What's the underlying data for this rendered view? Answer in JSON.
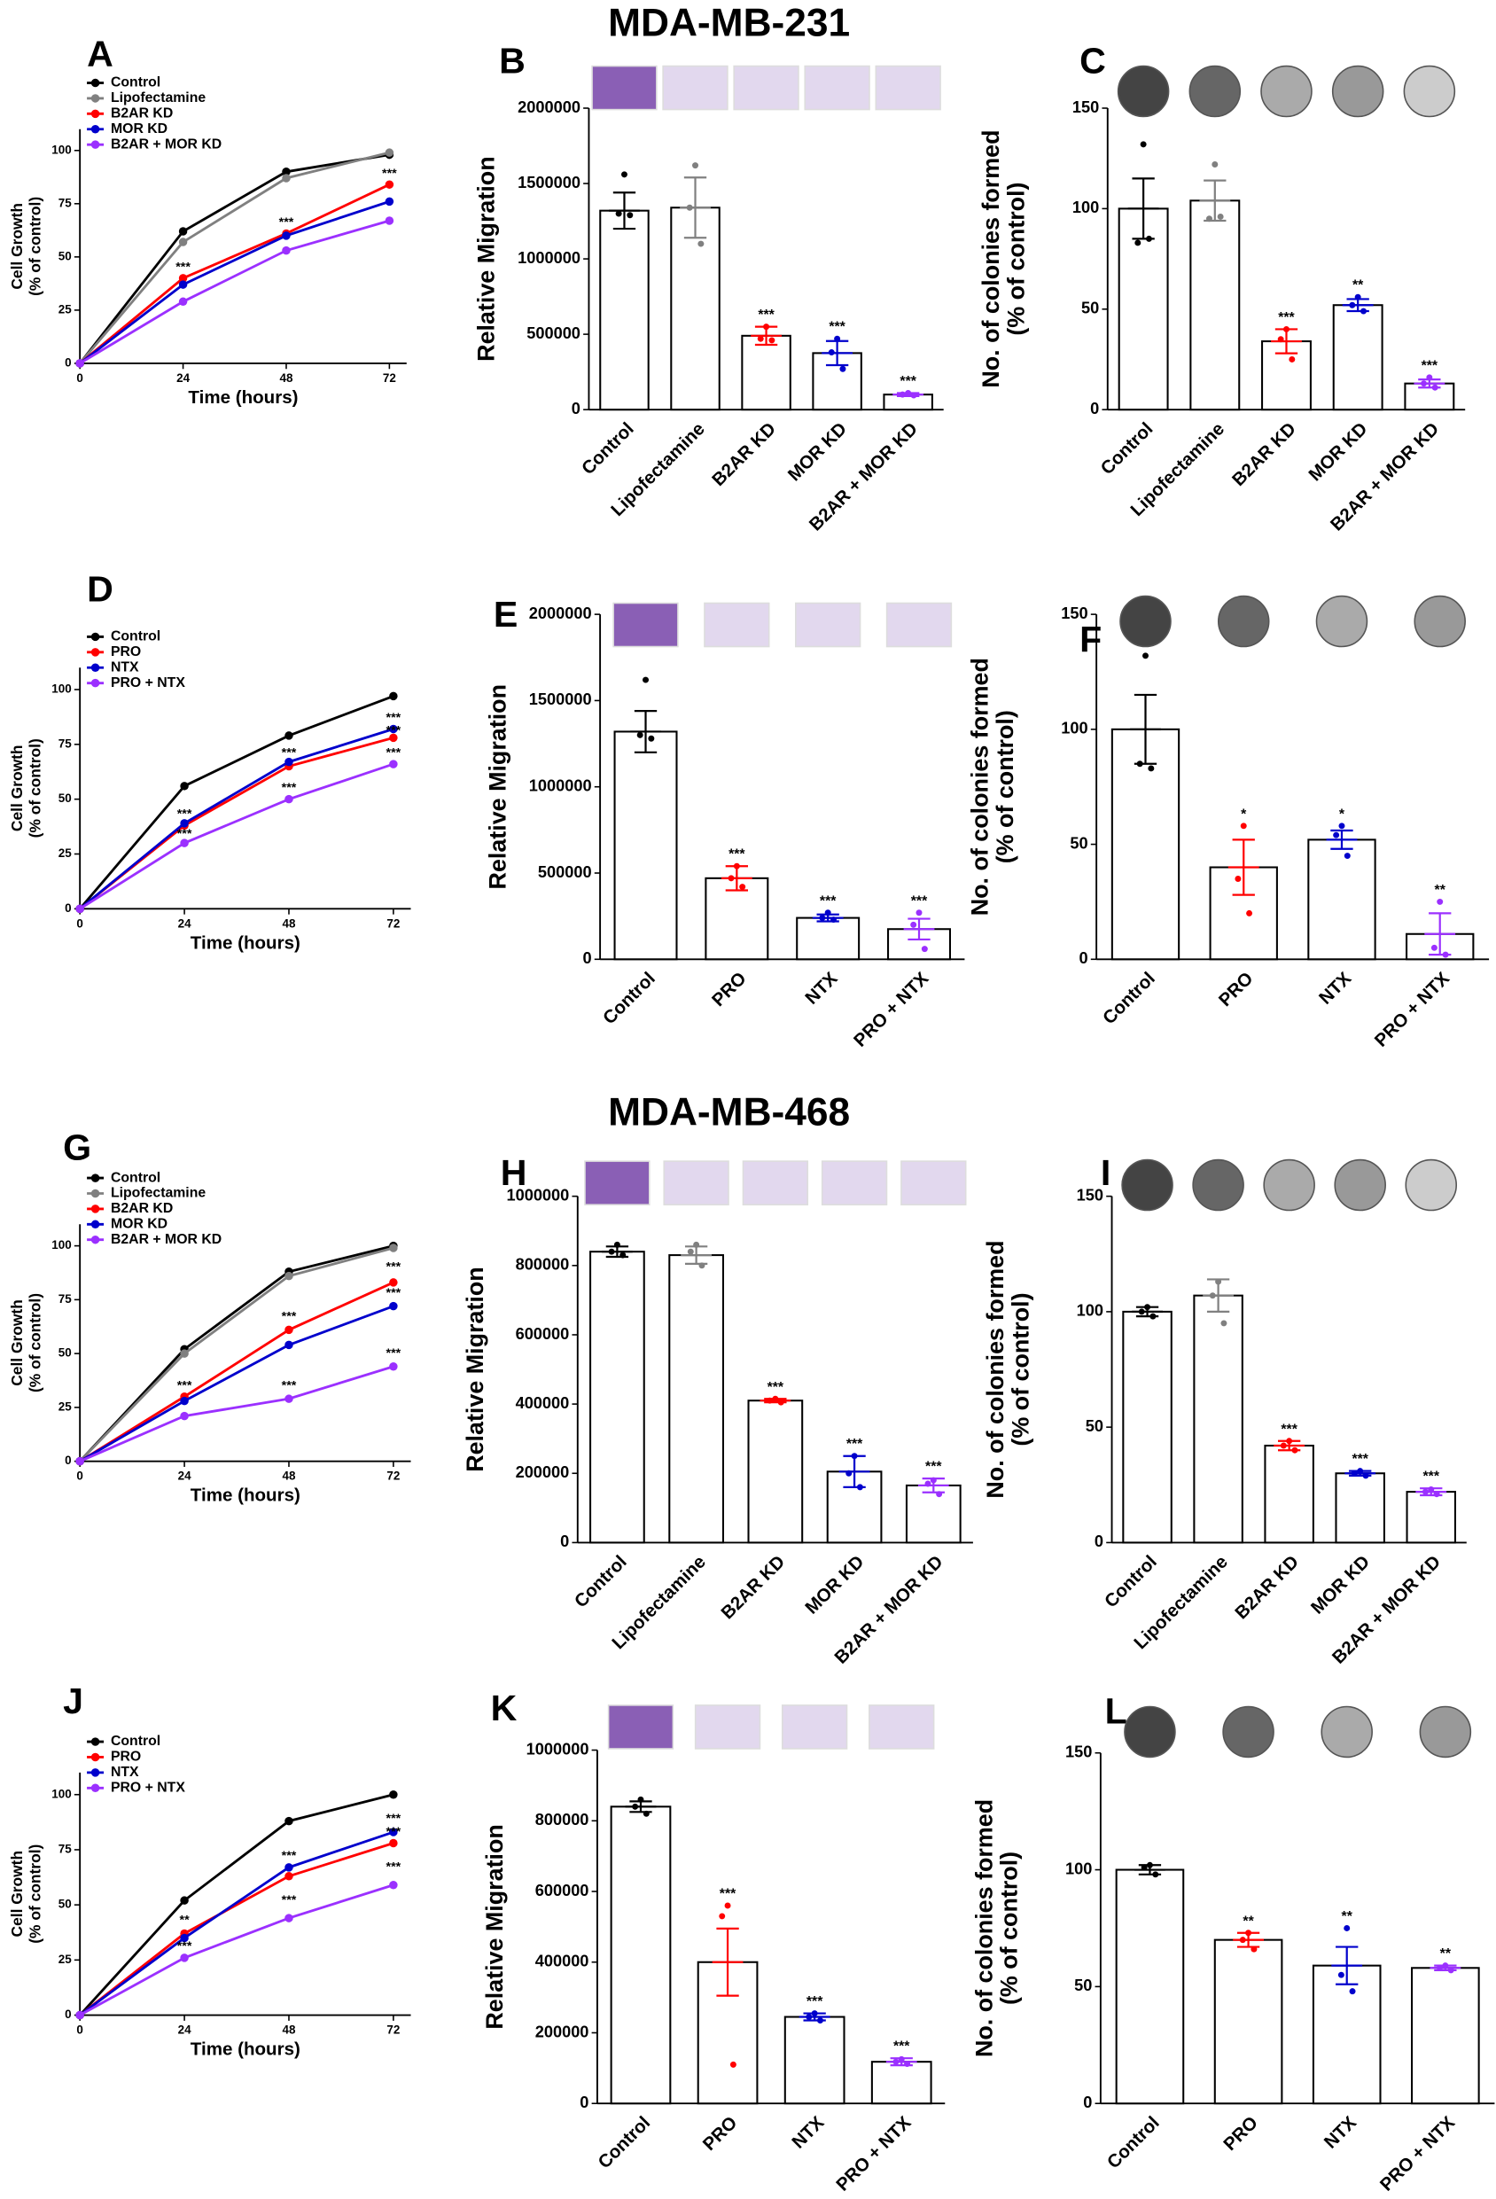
{
  "chart_data": [
    {
      "type": "line",
      "label": "A",
      "x": [
        0,
        24,
        48,
        72
      ],
      "xlim": [
        0,
        76
      ],
      "xticks": [
        0,
        24,
        48,
        72
      ],
      "ylim": [
        0,
        110
      ],
      "yticks": [
        0,
        25,
        50,
        75,
        100
      ],
      "xlabel": "Time (hours)",
      "ylabel": [
        "Cell Growth",
        "(% of control)"
      ],
      "series": [
        {
          "name": "Control",
          "color": "#000000",
          "values": [
            0,
            62,
            90,
            98
          ]
        },
        {
          "name": "Lipofectamine",
          "color": "#808080",
          "values": [
            0,
            57,
            87,
            99
          ]
        },
        {
          "name": "B2AR KD",
          "color": "#ff0000",
          "values": [
            0,
            40,
            61,
            84
          ]
        },
        {
          "name": "MOR KD",
          "color": "#0000cc",
          "values": [
            0,
            37,
            60,
            76
          ]
        },
        {
          "name": "B2AR + MOR KD",
          "color": "#9b30ff",
          "values": [
            0,
            29,
            53,
            67
          ]
        }
      ],
      "annotations": [
        {
          "text": "***",
          "x": 24,
          "y": 45
        },
        {
          "text": "***",
          "x": 48,
          "y": 66
        },
        {
          "text": "***",
          "x": 72,
          "y": 89
        }
      ]
    },
    {
      "type": "bar",
      "label": "B",
      "title": "MDA-MB-231",
      "categories": [
        "Control",
        "Lipofectamine",
        "B2AR KD",
        "MOR KD",
        "B2AR + MOR KD"
      ],
      "values": [
        1320000,
        1340000,
        490000,
        375000,
        100000
      ],
      "errors": [
        120000,
        200000,
        60000,
        80000,
        10000
      ],
      "points": [
        [
          1560000,
          1300000,
          1290000
        ],
        [
          1620000,
          1340000,
          1100000
        ],
        [
          550000,
          470000,
          460000
        ],
        [
          470000,
          380000,
          270000
        ],
        [
          110000,
          100000,
          95000
        ]
      ],
      "colors": [
        "#000000",
        "#808080",
        "#ff0000",
        "#0000cc",
        "#9b30ff"
      ],
      "significance": [
        null,
        null,
        "***",
        "***",
        "***"
      ],
      "ylabel": [
        "Relative Migration"
      ],
      "ylim": [
        0,
        2000000
      ],
      "yticks": [
        0,
        500000,
        1000000,
        1500000,
        2000000
      ]
    },
    {
      "type": "bar",
      "label": "C",
      "categories": [
        "Control",
        "Lipofectamine",
        "B2AR KD",
        "MOR KD",
        "B2AR + MOR KD"
      ],
      "values": [
        100,
        104,
        34,
        52,
        13
      ],
      "errors": [
        15,
        10,
        6,
        3,
        2
      ],
      "points": [
        [
          132,
          83,
          85
        ],
        [
          122,
          95,
          96
        ],
        [
          40,
          35,
          25
        ],
        [
          56,
          52,
          49
        ],
        [
          16,
          13,
          11
        ]
      ],
      "colors": [
        "#000000",
        "#808080",
        "#ff0000",
        "#0000cc",
        "#9b30ff"
      ],
      "significance": [
        null,
        null,
        "***",
        "**",
        "***"
      ],
      "ylabel": [
        "No. of colonies formed",
        "(% of control)"
      ],
      "ylim": [
        0,
        150
      ],
      "yticks": [
        0,
        50,
        100,
        150
      ]
    },
    {
      "type": "line",
      "label": "D",
      "x": [
        0,
        24,
        48,
        72
      ],
      "xlim": [
        0,
        76
      ],
      "xticks": [
        0,
        24,
        48,
        72
      ],
      "ylim": [
        0,
        110
      ],
      "yticks": [
        0,
        25,
        50,
        75,
        100
      ],
      "xlabel": "Time (hours)",
      "ylabel": [
        "Cell Growth",
        "(% of control)"
      ],
      "series": [
        {
          "name": "Control",
          "color": "#000000",
          "values": [
            0,
            56,
            79,
            97
          ]
        },
        {
          "name": "PRO",
          "color": "#ff0000",
          "values": [
            0,
            38,
            65,
            78
          ]
        },
        {
          "name": "NTX",
          "color": "#0000cc",
          "values": [
            0,
            39,
            67,
            82
          ]
        },
        {
          "name": "PRO + NTX",
          "color": "#9b30ff",
          "values": [
            0,
            30,
            50,
            66
          ]
        }
      ],
      "annotations": [
        {
          "text": "***",
          "x": 24,
          "y": 43
        },
        {
          "text": "***",
          "x": 24,
          "y": 34
        },
        {
          "text": "***",
          "x": 48,
          "y": 71
        },
        {
          "text": "***",
          "x": 48,
          "y": 55
        },
        {
          "text": "***",
          "x": 72,
          "y": 87
        },
        {
          "text": "***",
          "x": 72,
          "y": 81
        },
        {
          "text": "***",
          "x": 72,
          "y": 71
        }
      ]
    },
    {
      "type": "bar",
      "label": "E",
      "categories": [
        "Control",
        "PRO",
        "NTX",
        "PRO + NTX"
      ],
      "values": [
        1320000,
        470000,
        240000,
        175000
      ],
      "errors": [
        120000,
        70000,
        20000,
        60000
      ],
      "points": [
        [
          1620000,
          1300000,
          1280000
        ],
        [
          540000,
          470000,
          420000
        ],
        [
          270000,
          240000,
          230000
        ],
        [
          270000,
          200000,
          60000
        ]
      ],
      "colors": [
        "#000000",
        "#ff0000",
        "#0000cc",
        "#9b30ff"
      ],
      "significance": [
        null,
        "***",
        "***",
        "***"
      ],
      "ylabel": [
        "Relative Migration"
      ],
      "ylim": [
        0,
        2000000
      ],
      "yticks": [
        0,
        500000,
        1000000,
        1500000,
        2000000
      ]
    },
    {
      "type": "bar",
      "label": "F",
      "categories": [
        "Control",
        "PRO",
        "NTX",
        "PRO + NTX"
      ],
      "values": [
        100,
        40,
        52,
        11
      ],
      "errors": [
        15,
        12,
        4,
        9
      ],
      "points": [
        [
          132,
          85,
          83
        ],
        [
          58,
          35,
          20
        ],
        [
          58,
          54,
          45
        ],
        [
          25,
          5,
          2
        ]
      ],
      "colors": [
        "#000000",
        "#ff0000",
        "#0000cc",
        "#9b30ff"
      ],
      "significance": [
        null,
        "*",
        "*",
        "**"
      ],
      "ylabel": [
        "No. of colonies formed",
        "(% of control)"
      ],
      "ylim": [
        0,
        150
      ],
      "yticks": [
        0,
        50,
        100,
        150
      ]
    },
    {
      "type": "line",
      "label": "G",
      "x": [
        0,
        24,
        48,
        72
      ],
      "xlim": [
        0,
        76
      ],
      "xticks": [
        0,
        24,
        48,
        72
      ],
      "ylim": [
        0,
        110
      ],
      "yticks": [
        0,
        25,
        50,
        75,
        100
      ],
      "xlabel": "Time (hours)",
      "ylabel": [
        "Cell Growth",
        "(% of control)"
      ],
      "series": [
        {
          "name": "Control",
          "color": "#000000",
          "values": [
            0,
            52,
            88,
            100
          ]
        },
        {
          "name": "Lipofectamine",
          "color": "#808080",
          "values": [
            0,
            50,
            86,
            99
          ]
        },
        {
          "name": "B2AR KD",
          "color": "#ff0000",
          "values": [
            0,
            30,
            61,
            83
          ]
        },
        {
          "name": "MOR KD",
          "color": "#0000cc",
          "values": [
            0,
            28,
            54,
            72
          ]
        },
        {
          "name": "B2AR + MOR KD",
          "color": "#9b30ff",
          "values": [
            0,
            21,
            29,
            44
          ]
        }
      ],
      "annotations": [
        {
          "text": "***",
          "x": 24,
          "y": 35
        },
        {
          "text": "***",
          "x": 48,
          "y": 67
        },
        {
          "text": "***",
          "x": 48,
          "y": 35
        },
        {
          "text": "***",
          "x": 72,
          "y": 90
        },
        {
          "text": "***",
          "x": 72,
          "y": 78
        },
        {
          "text": "***",
          "x": 72,
          "y": 50
        }
      ]
    },
    {
      "type": "bar",
      "label": "H",
      "title": "MDA-MB-468",
      "categories": [
        "Control",
        "Lipofectamine",
        "B2AR KD",
        "MOR KD",
        "B2AR + MOR KD"
      ],
      "values": [
        840000,
        830000,
        410000,
        205000,
        165000
      ],
      "errors": [
        15000,
        25000,
        5000,
        45000,
        20000
      ],
      "points": [
        [
          860000,
          840000,
          830000
        ],
        [
          860000,
          840000,
          800000
        ],
        [
          415000,
          410000,
          405000
        ],
        [
          250000,
          200000,
          160000
        ],
        [
          180000,
          170000,
          140000
        ]
      ],
      "colors": [
        "#000000",
        "#808080",
        "#ff0000",
        "#0000cc",
        "#9b30ff"
      ],
      "significance": [
        null,
        null,
        "***",
        "***",
        "***"
      ],
      "ylabel": [
        "Relative Migration"
      ],
      "ylim": [
        0,
        1000000
      ],
      "yticks": [
        0,
        200000,
        400000,
        600000,
        800000,
        1000000
      ]
    },
    {
      "type": "bar",
      "label": "I",
      "categories": [
        "Control",
        "Lipofectamine",
        "B2AR KD",
        "MOR KD",
        "B2AR + MOR KD"
      ],
      "values": [
        100,
        107,
        42,
        30,
        22
      ],
      "errors": [
        2,
        7,
        2,
        1,
        1.5
      ],
      "points": [
        [
          102,
          100,
          98
        ],
        [
          113,
          107,
          95
        ],
        [
          44,
          42,
          40
        ],
        [
          31,
          30,
          29
        ],
        [
          23,
          22,
          21
        ]
      ],
      "colors": [
        "#000000",
        "#808080",
        "#ff0000",
        "#0000cc",
        "#9b30ff"
      ],
      "significance": [
        null,
        null,
        "***",
        "***",
        "***"
      ],
      "ylabel": [
        "No. of colonies formed",
        "(% of control)"
      ],
      "ylim": [
        0,
        150
      ],
      "yticks": [
        0,
        50,
        100,
        150
      ]
    },
    {
      "type": "line",
      "label": "J",
      "x": [
        0,
        24,
        48,
        72
      ],
      "xlim": [
        0,
        76
      ],
      "xticks": [
        0,
        24,
        48,
        72
      ],
      "ylim": [
        0,
        110
      ],
      "yticks": [
        0,
        25,
        50,
        75,
        100
      ],
      "xlabel": "Time (hours)",
      "ylabel": [
        "Cell Growth",
        "(% of control)"
      ],
      "series": [
        {
          "name": "Control",
          "color": "#000000",
          "values": [
            0,
            52,
            88,
            100
          ]
        },
        {
          "name": "PRO",
          "color": "#ff0000",
          "values": [
            0,
            37,
            63,
            78
          ]
        },
        {
          "name": "NTX",
          "color": "#0000cc",
          "values": [
            0,
            35,
            67,
            83
          ]
        },
        {
          "name": "PRO + NTX",
          "color": "#9b30ff",
          "values": [
            0,
            26,
            44,
            59
          ]
        }
      ],
      "annotations": [
        {
          "text": "**",
          "x": 24,
          "y": 43
        },
        {
          "text": "***",
          "x": 24,
          "y": 31
        },
        {
          "text": "***",
          "x": 48,
          "y": 72
        },
        {
          "text": "***",
          "x": 48,
          "y": 52
        },
        {
          "text": "***",
          "x": 72,
          "y": 89
        },
        {
          "text": "***",
          "x": 72,
          "y": 83
        },
        {
          "text": "***",
          "x": 72,
          "y": 67
        }
      ]
    },
    {
      "type": "bar",
      "label": "K",
      "categories": [
        "Control",
        "PRO",
        "NTX",
        "PRO + NTX"
      ],
      "values": [
        840000,
        400000,
        245000,
        118000
      ],
      "errors": [
        15000,
        95000,
        10000,
        10000
      ],
      "points": [
        [
          860000,
          840000,
          820000
        ],
        [
          560000,
          530000,
          110000
        ],
        [
          255000,
          245000,
          235000
        ],
        [
          125000,
          118000,
          112000
        ]
      ],
      "colors": [
        "#000000",
        "#ff0000",
        "#0000cc",
        "#9b30ff"
      ],
      "significance": [
        null,
        "***",
        "***",
        "***"
      ],
      "ylabel": [
        "Relative Migration"
      ],
      "ylim": [
        0,
        1000000
      ],
      "yticks": [
        0,
        200000,
        400000,
        600000,
        800000,
        1000000
      ]
    },
    {
      "type": "bar",
      "label": "L",
      "categories": [
        "Control",
        "PRO",
        "NTX",
        "PRO + NTX"
      ],
      "values": [
        100,
        70,
        59,
        58
      ],
      "errors": [
        2,
        3,
        8,
        1
      ],
      "points": [
        [
          102,
          101,
          98
        ],
        [
          73,
          70,
          66
        ],
        [
          75,
          55,
          48
        ],
        [
          59,
          58,
          57
        ]
      ],
      "colors": [
        "#000000",
        "#ff0000",
        "#0000cc",
        "#9b30ff"
      ],
      "significance": [
        null,
        "**",
        "**",
        "**"
      ],
      "ylabel": [
        "No. of colonies formed",
        "(% of control)"
      ],
      "ylim": [
        0,
        150
      ],
      "yticks": [
        0,
        50,
        100,
        150
      ]
    }
  ]
}
